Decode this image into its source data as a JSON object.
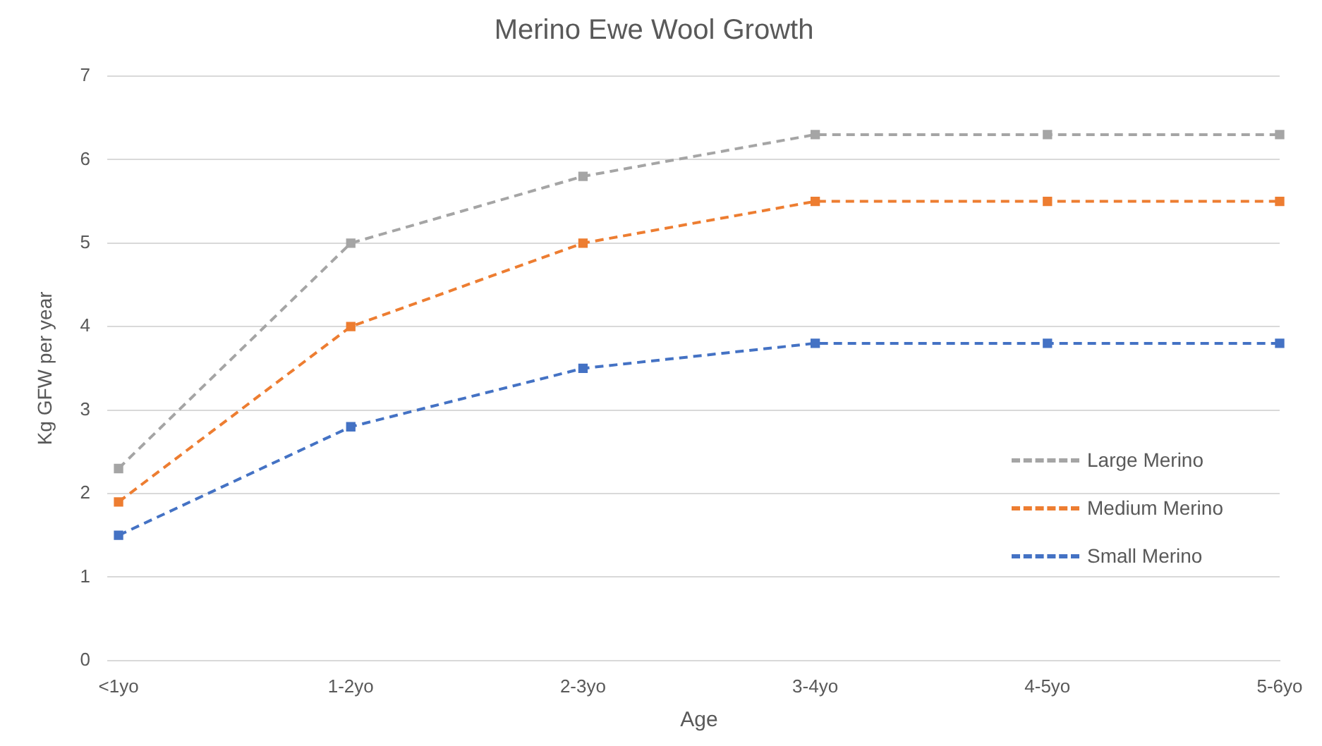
{
  "chart_data": {
    "type": "line",
    "title": "Merino Ewe Wool Growth",
    "xlabel": "Age",
    "ylabel": "Kg GFW per year",
    "categories": [
      "<1yo",
      "1-2yo",
      "2-3yo",
      "3-4yo",
      "4-5yo",
      "5-6yo"
    ],
    "series": [
      {
        "name": "Large Merino",
        "color": "#a5a5a5",
        "values": [
          2.3,
          5.0,
          5.8,
          6.3,
          6.3,
          6.3
        ]
      },
      {
        "name": "Medium Merino",
        "color": "#ed7d31",
        "values": [
          1.9,
          4.0,
          5.0,
          5.5,
          5.5,
          5.5
        ]
      },
      {
        "name": "Small Merino",
        "color": "#4472c4",
        "values": [
          1.5,
          2.8,
          3.5,
          3.8,
          3.8,
          3.8
        ]
      }
    ],
    "ylim": [
      0,
      7
    ],
    "yticks": [
      0,
      1,
      2,
      3,
      4,
      5,
      6,
      7
    ],
    "grid": "y",
    "legend": "right",
    "marker": "square",
    "line_style": "dashed"
  }
}
